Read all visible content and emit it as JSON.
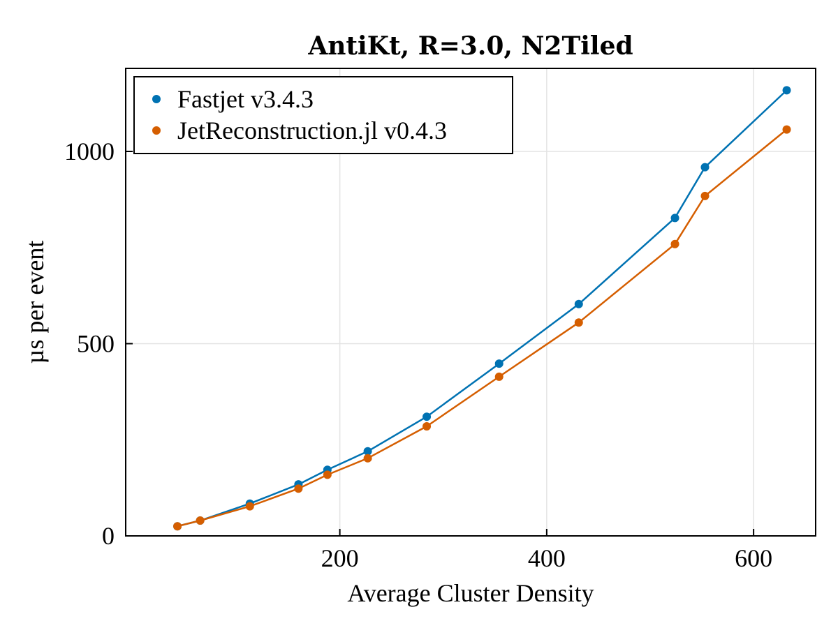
{
  "chart_data": {
    "type": "line",
    "title": "AntiKt, R=3.0, N2Tiled",
    "xlabel": "Average Cluster Density",
    "ylabel": "µs per event",
    "xlim": [
      -7,
      660
    ],
    "ylim": [
      0,
      1216
    ],
    "xticks": [
      200,
      400,
      600
    ],
    "yticks": [
      0,
      500,
      1000
    ],
    "grid": true,
    "legend_position": "top-left",
    "x": [
      43,
      65,
      113,
      160,
      188,
      227,
      284,
      354,
      431,
      524,
      553,
      632
    ],
    "series": [
      {
        "name": "Fastjet v3.4.3",
        "color": "#0072b2",
        "values": [
          25,
          40,
          84,
          134,
          172,
          220,
          310,
          448,
          603,
          827,
          959,
          1159
        ]
      },
      {
        "name": "JetReconstruction.jl v0.4.3",
        "color": "#d55e00",
        "values": [
          25,
          40,
          77,
          123,
          159,
          202,
          285,
          414,
          555,
          759,
          884,
          1057
        ]
      }
    ]
  }
}
